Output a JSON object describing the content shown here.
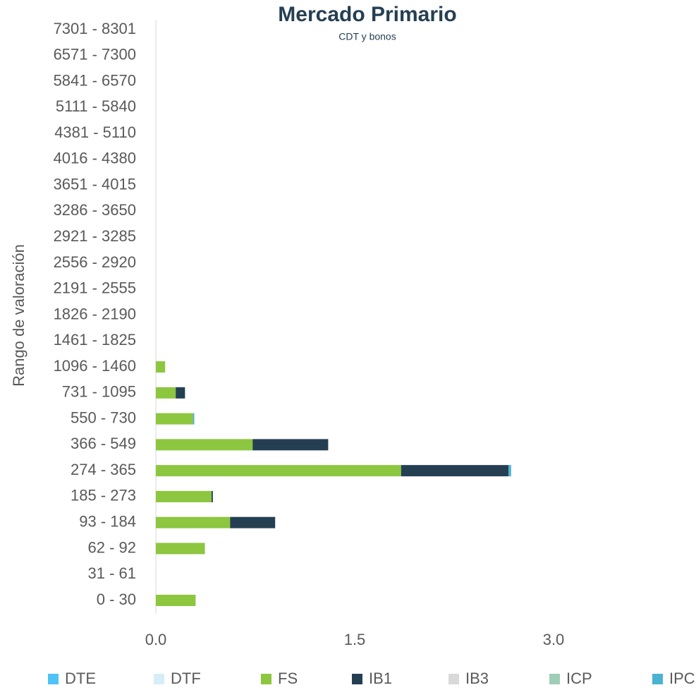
{
  "chart_data": {
    "type": "stacked-barh",
    "title": "Mercado Primario",
    "subtitle": "CDT y bonos",
    "y_label": "Rango de valoración",
    "categories": [
      "0 - 30",
      "31 - 61",
      "62 - 92",
      "93 - 184",
      "185 - 273",
      "274 - 365",
      "366 - 549",
      "550 - 730",
      "731 - 1095",
      "1096 - 1460",
      "1461 - 1825",
      "1826 - 2190",
      "2191 - 2555",
      "2556 - 2920",
      "2921 - 3285",
      "3286 - 3650",
      "3651 - 4015",
      "4016 - 4380",
      "4381 - 5110",
      "5111 - 5840",
      "5841 - 6570",
      "6571 - 7300",
      "7301 - 8301"
    ],
    "series": [
      {
        "name": "DTE",
        "color": "#4fc3f7",
        "values": [
          0,
          0,
          0,
          0,
          0,
          0,
          0,
          0,
          0,
          0,
          0,
          0,
          0,
          0,
          0,
          0,
          0,
          0,
          0,
          0,
          0,
          0,
          0
        ]
      },
      {
        "name": "DTF",
        "color": "#d6eef8",
        "values": [
          0,
          0,
          0,
          0,
          0,
          0,
          0,
          0,
          0,
          0,
          0,
          0,
          0,
          0,
          0,
          0,
          0,
          0,
          0,
          0,
          0,
          0,
          0
        ]
      },
      {
        "name": "FS",
        "color": "#8dc63f",
        "values": [
          0.3,
          0,
          0.37,
          0.56,
          0.42,
          1.85,
          0.73,
          0.28,
          0.15,
          0.07,
          0,
          0,
          0,
          0,
          0,
          0,
          0,
          0,
          0,
          0,
          0,
          0,
          0
        ]
      },
      {
        "name": "IB1",
        "color": "#253f52",
        "values": [
          0,
          0,
          0,
          0.34,
          0.01,
          0.81,
          0.57,
          0,
          0.07,
          0,
          0,
          0,
          0,
          0,
          0,
          0,
          0,
          0,
          0,
          0,
          0,
          0,
          0
        ]
      },
      {
        "name": "IB3",
        "color": "#d9d9d9",
        "values": [
          0,
          0,
          0,
          0,
          0,
          0,
          0,
          0,
          0,
          0,
          0,
          0,
          0,
          0,
          0,
          0,
          0,
          0,
          0,
          0,
          0,
          0,
          0
        ]
      },
      {
        "name": "ICP",
        "color": "#9fcdb8",
        "values": [
          0,
          0,
          0,
          0,
          0,
          0,
          0,
          0,
          0,
          0,
          0,
          0,
          0,
          0,
          0,
          0,
          0,
          0,
          0,
          0,
          0,
          0,
          0
        ]
      },
      {
        "name": "IPC",
        "color": "#4ab3d1",
        "values": [
          0,
          0,
          0,
          0,
          0,
          0.02,
          0,
          0.01,
          0,
          0,
          0,
          0,
          0,
          0,
          0,
          0,
          0,
          0,
          0,
          0,
          0,
          0,
          0
        ]
      }
    ],
    "xlim": [
      0,
      4.0
    ],
    "xticks": [
      {
        "value": 0,
        "label": "0.0"
      },
      {
        "value": 1.5,
        "label": "1.5"
      },
      {
        "value": 3.0,
        "label": "3.0"
      }
    ]
  }
}
